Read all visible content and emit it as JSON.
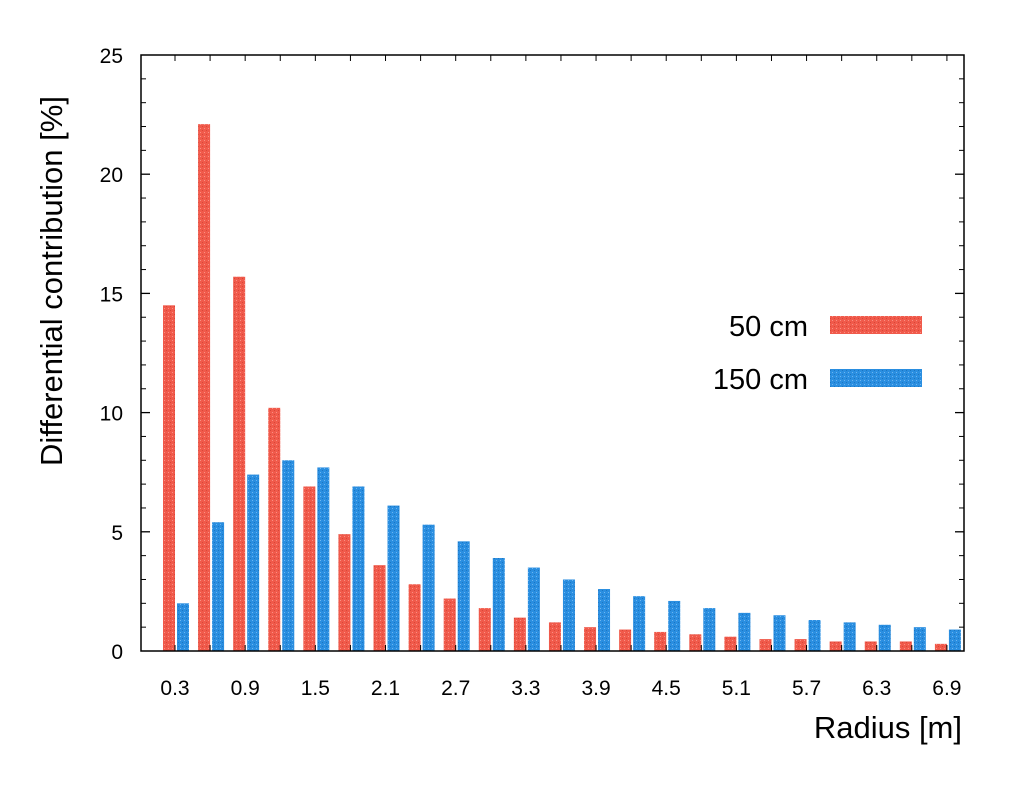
{
  "chart_data": {
    "type": "bar",
    "xlabel": "Radius [m]",
    "ylabel": "Differential contribution [%]",
    "ylim": [
      0,
      25
    ],
    "yticks": [
      "0",
      "5",
      "10",
      "15",
      "20",
      "25"
    ],
    "x_tick_labels": [
      "0.3",
      "0.9",
      "1.5",
      "2.1",
      "2.7",
      "3.3",
      "3.9",
      "4.5",
      "5.1",
      "5.7",
      "6.3",
      "6.9"
    ],
    "categories": [
      "0.3",
      "0.6",
      "0.9",
      "1.2",
      "1.5",
      "1.8",
      "2.1",
      "2.4",
      "2.7",
      "3.0",
      "3.3",
      "3.6",
      "3.9",
      "4.2",
      "4.5",
      "4.8",
      "5.1",
      "5.4",
      "5.7",
      "6.0",
      "6.3",
      "6.6",
      "6.9"
    ],
    "series": [
      {
        "name": "50 cm",
        "color": "#f05a4b",
        "values": [
          14.5,
          22.1,
          15.7,
          10.2,
          6.9,
          4.9,
          3.6,
          2.8,
          2.2,
          1.8,
          1.4,
          1.2,
          1.0,
          0.9,
          0.8,
          0.7,
          0.6,
          0.5,
          0.5,
          0.4,
          0.4,
          0.4,
          0.3
        ]
      },
      {
        "name": "150 cm",
        "color": "#2a8ee0",
        "values": [
          2.0,
          5.4,
          7.4,
          8.0,
          7.7,
          6.9,
          6.1,
          5.3,
          4.6,
          3.9,
          3.5,
          3.0,
          2.6,
          2.3,
          2.1,
          1.8,
          1.6,
          1.5,
          1.3,
          1.2,
          1.1,
          1.0,
          0.9
        ]
      }
    ],
    "legend_position": "right",
    "grid": false
  }
}
